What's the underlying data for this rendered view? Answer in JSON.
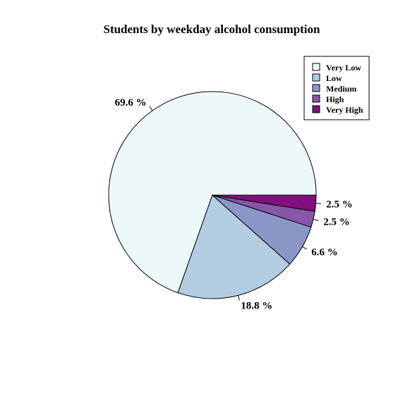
{
  "chart_data": {
    "type": "pie",
    "title": "Students by weekday alcohol consumption",
    "categories": [
      "Very Low",
      "Low",
      "Medium",
      "High",
      "Very High"
    ],
    "values": [
      69.6,
      18.8,
      6.6,
      2.5,
      2.5
    ],
    "value_labels": [
      "69.6 %",
      "18.8 %",
      "6.6 %",
      "2.5 %",
      "2.5 %"
    ],
    "colors": [
      "#EDF8FB",
      "#B3CDE3",
      "#8C96C6",
      "#8856A7",
      "#810F7C"
    ],
    "legend": {
      "placement": "top-right",
      "entries": [
        "Very Low",
        "Low",
        "Medium",
        "High",
        "Very High"
      ]
    }
  }
}
